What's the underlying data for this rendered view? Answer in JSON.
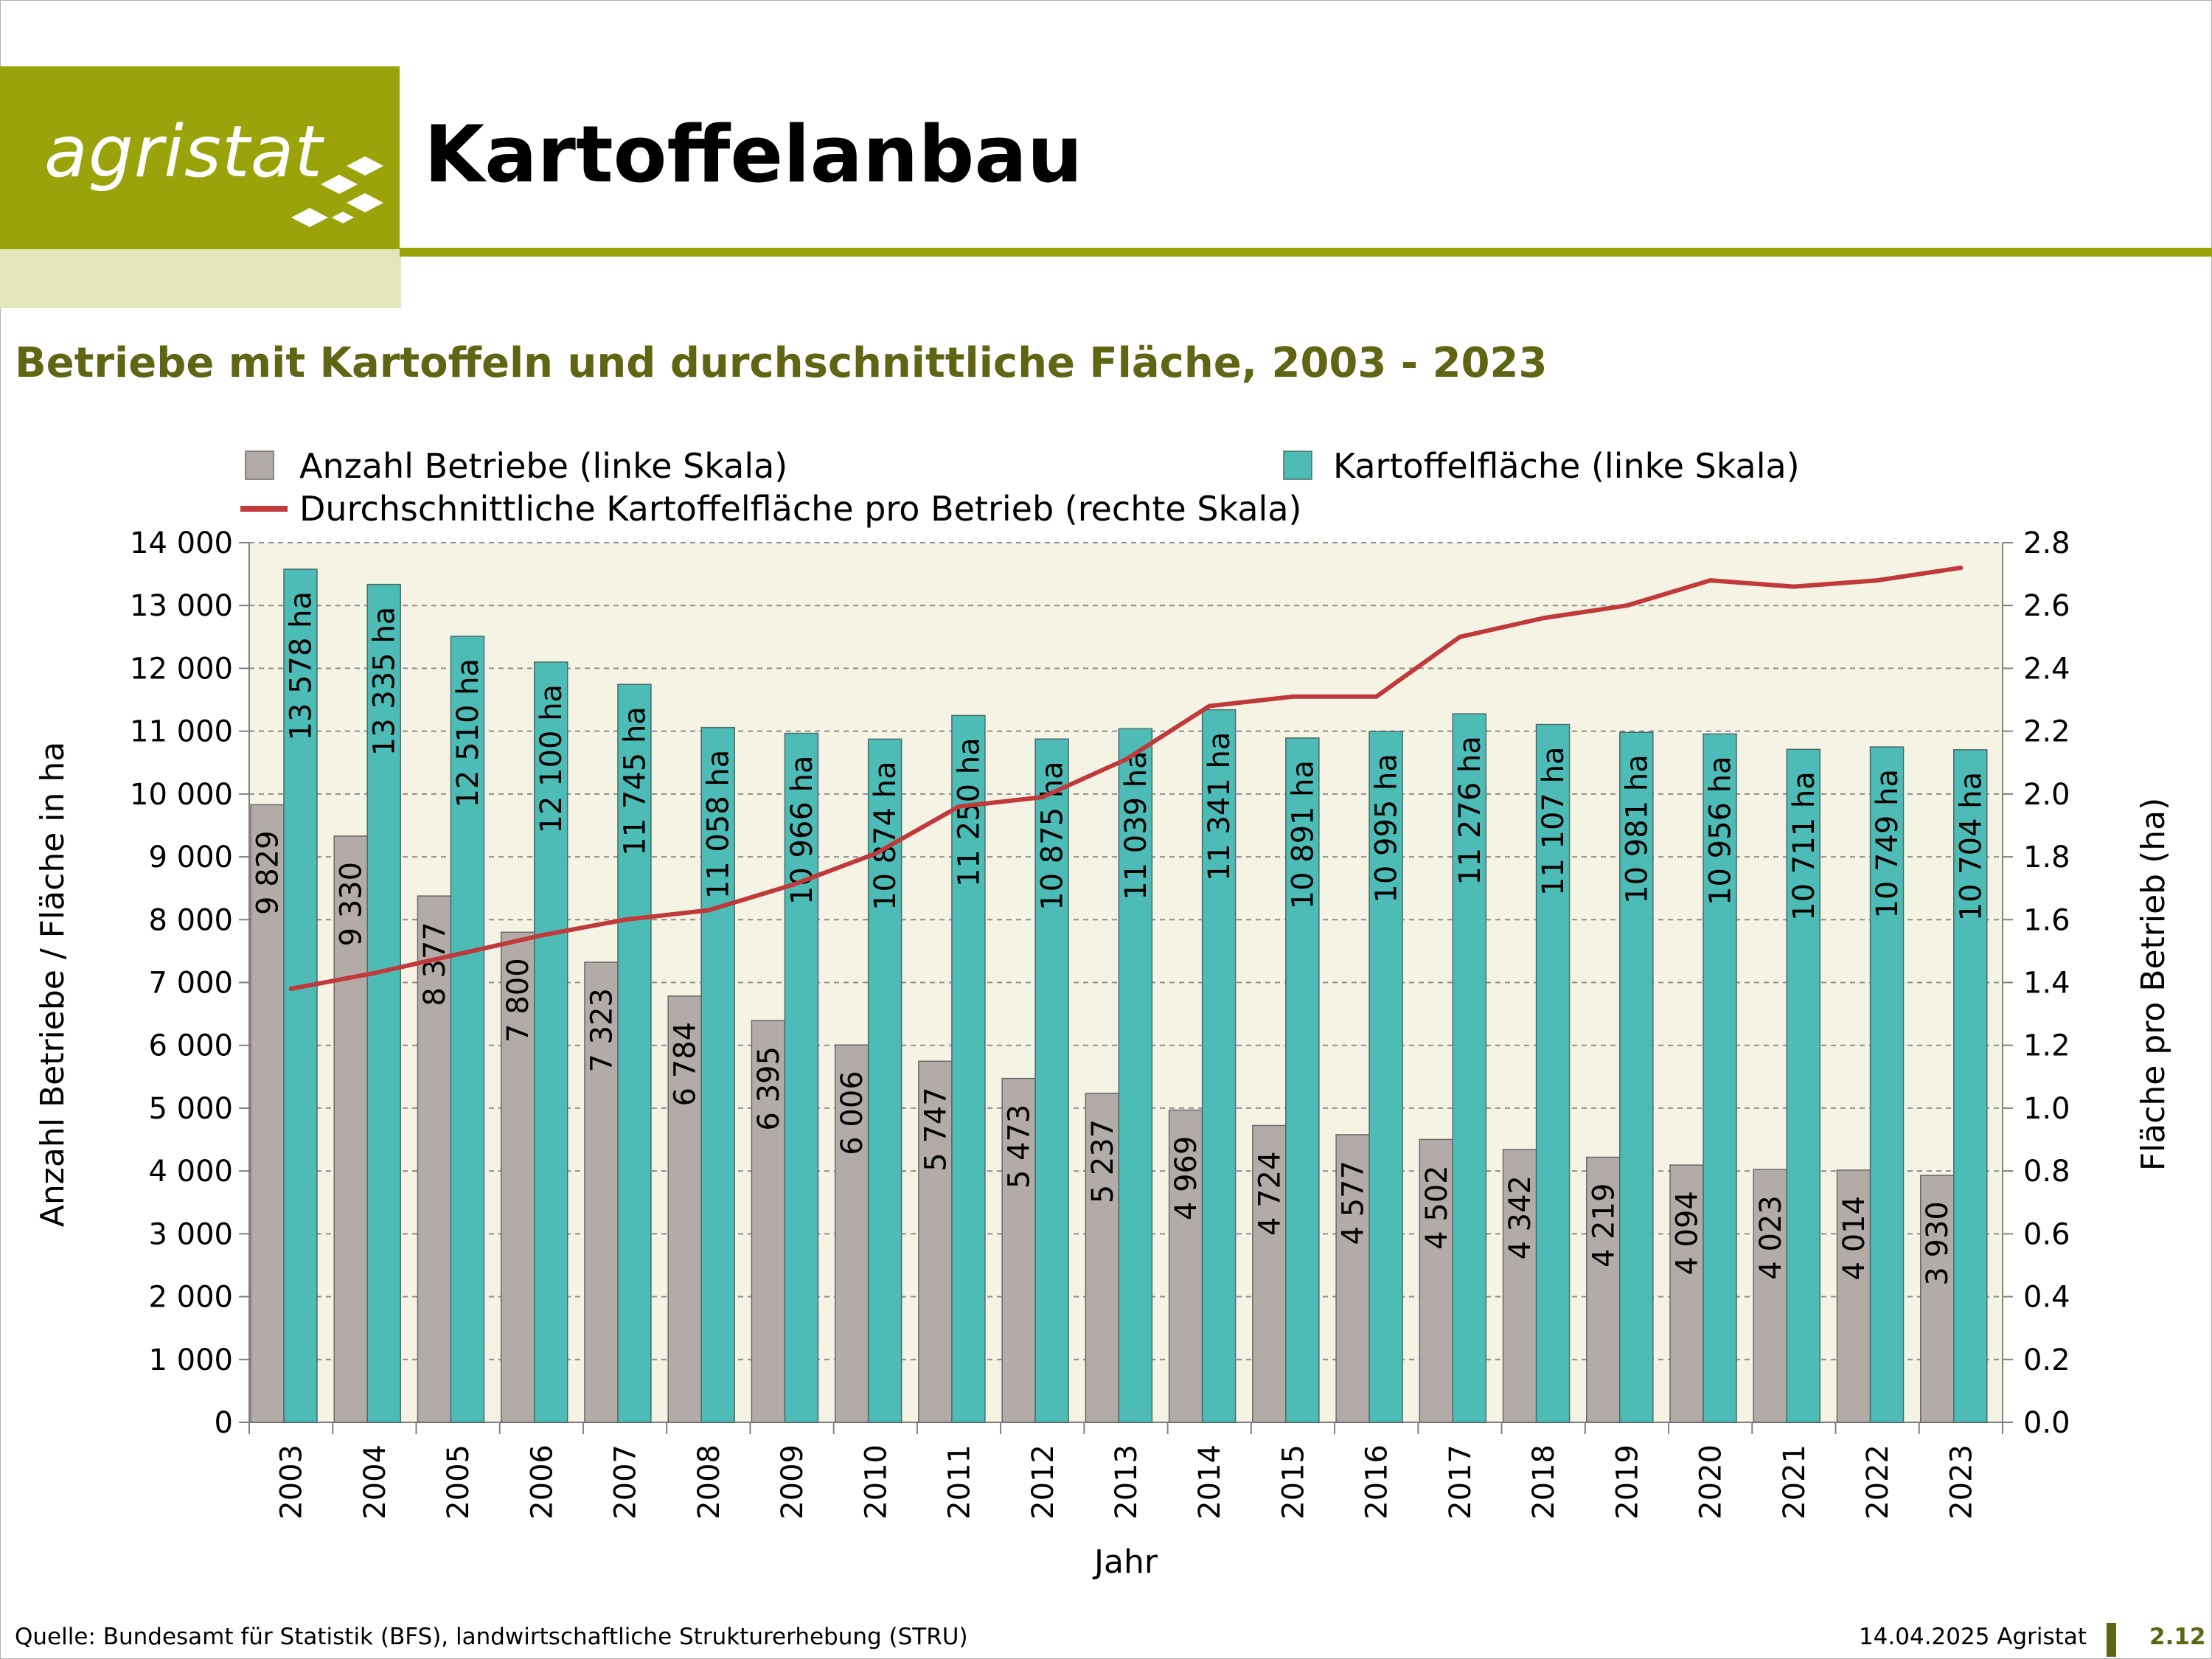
{
  "header": {
    "logo_text": "agristat",
    "title": "Kartoffelanbau"
  },
  "subtitle": "Betriebe mit Kartoffeln und durchschnittliche Fläche, 2003 - 2023",
  "footer": {
    "source": "Quelle: Bundesamt für Statistik (BFS), landwirtschaftliche Strukturerhebung (STRU)",
    "date": "14.04.2025 Agristat",
    "page_number": "2.12"
  },
  "colors": {
    "brand_olive": "#9ba30b",
    "brand_light": "#e3e6ba",
    "subtitle_text": "#5f6512",
    "plot_bg": "#f4f3e4",
    "bar_betriebe": "#b3aba7",
    "bar_flaeche": "#4dbcb7",
    "line_avg": "#c0393b"
  },
  "chart_data": {
    "type": "bar",
    "xlabel": "Jahr",
    "ylabel_left": "Anzahl Betriebe / Fläche in ha",
    "ylabel_right": "Fläche pro Betrieb (ha)",
    "ylim_left": [
      0,
      14000
    ],
    "ylim_right": [
      0,
      2.8
    ],
    "yticks_left": [
      "0",
      "1 000",
      "2 000",
      "3 000",
      "4 000",
      "5 000",
      "6 000",
      "7 000",
      "8 000",
      "9 000",
      "10 000",
      "11 000",
      "12 000",
      "13 000",
      "14 000"
    ],
    "yticks_right": [
      "0.0",
      "0.2",
      "0.4",
      "0.6",
      "0.8",
      "1.0",
      "1.2",
      "1.4",
      "1.6",
      "1.8",
      "2.0",
      "2.2",
      "2.4",
      "2.6",
      "2.8"
    ],
    "grid": true,
    "legend_position": "top",
    "categories": [
      "2003",
      "2004",
      "2005",
      "2006",
      "2007",
      "2008",
      "2009",
      "2010",
      "2011",
      "2012",
      "2013",
      "2014",
      "2015",
      "2016",
      "2017",
      "2018",
      "2019",
      "2020",
      "2021",
      "2022",
      "2023"
    ],
    "series": [
      {
        "name": "Anzahl Betriebe (linke Skala)",
        "kind": "bar",
        "axis": "left",
        "values": [
          9829,
          9330,
          8377,
          7800,
          7323,
          6784,
          6395,
          6006,
          5747,
          5473,
          5237,
          4969,
          4724,
          4577,
          4502,
          4342,
          4219,
          4094,
          4023,
          4014,
          3930
        ],
        "labels": [
          "9 829",
          "9 330",
          "8 377",
          "7 800",
          "7 323",
          "6 784",
          "6 395",
          "6 006",
          "5 747",
          "5 473",
          "5 237",
          "4 969",
          "4 724",
          "4 577",
          "4 502",
          "4 342",
          "4 219",
          "4 094",
          "4 023",
          "4 014",
          "3 930"
        ]
      },
      {
        "name": "Kartoffelfläche (linke Skala)",
        "kind": "bar",
        "axis": "left",
        "values": [
          13578,
          13335,
          12510,
          12100,
          11745,
          11058,
          10966,
          10874,
          11250,
          10875,
          11039,
          11341,
          10891,
          10995,
          11276,
          11107,
          10981,
          10956,
          10711,
          10749,
          10704
        ],
        "labels": [
          "13 578 ha",
          "13 335 ha",
          "12 510 ha",
          "12 100 ha",
          "11 745 ha",
          "11 058 ha",
          "10 966 ha",
          "10 874 ha",
          "11 250 ha",
          "10 875 ha",
          "11 039 ha",
          "11 341 ha",
          "10 891 ha",
          "10 995 ha",
          "11 276 ha",
          "11 107 ha",
          "10 981 ha",
          "10 956 ha",
          "10 711 ha",
          "10 749 ha",
          "10 704 ha"
        ]
      },
      {
        "name": "Durchschnittliche Kartoffelfläche pro Betrieb (rechte Skala)",
        "kind": "line",
        "axis": "right",
        "values": [
          1.38,
          1.43,
          1.49,
          1.55,
          1.6,
          1.63,
          1.71,
          1.81,
          1.96,
          1.99,
          2.11,
          2.28,
          2.31,
          2.31,
          2.5,
          2.56,
          2.6,
          2.68,
          2.66,
          2.68,
          2.72
        ]
      }
    ]
  }
}
